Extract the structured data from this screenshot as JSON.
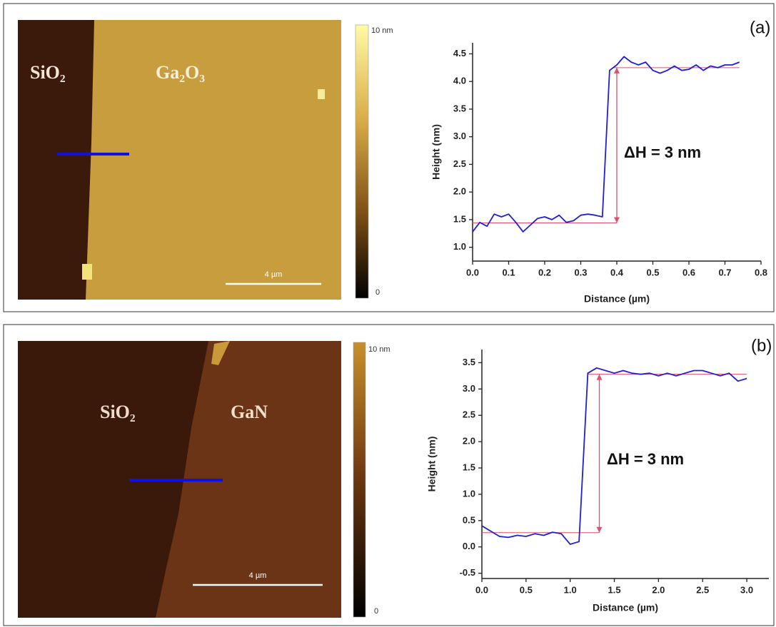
{
  "panels": [
    "(a)",
    "(b)"
  ],
  "images": [
    {
      "regions": [
        "SiO₂",
        "Ga₂O₃"
      ],
      "colorbar": {
        "max_label": "10 nm",
        "min_label": "0"
      },
      "scale_bar": "4 µm"
    },
    {
      "regions": [
        "SiO₂",
        "GaN"
      ],
      "colorbar": {
        "max_label": "10 nm",
        "min_label": "0"
      },
      "scale_bar": "4 µm"
    }
  ],
  "chart_data": [
    {
      "type": "line",
      "x_label": "Distance (µm)",
      "y_label": "Height (nm)",
      "x": [
        0,
        0.02,
        0.04,
        0.06,
        0.08,
        0.1,
        0.12,
        0.14,
        0.16,
        0.18,
        0.2,
        0.22,
        0.24,
        0.26,
        0.28,
        0.3,
        0.32,
        0.34,
        0.36,
        0.38,
        0.4,
        0.42,
        0.44,
        0.46,
        0.48,
        0.5,
        0.52,
        0.54,
        0.56,
        0.58,
        0.6,
        0.62,
        0.64,
        0.66,
        0.68,
        0.7,
        0.72,
        0.74
      ],
      "series": [
        {
          "color": "#1f1fd6",
          "values": [
            1.28,
            1.45,
            1.38,
            1.6,
            1.55,
            1.6,
            1.45,
            1.28,
            1.4,
            1.52,
            1.55,
            1.5,
            1.58,
            1.45,
            1.48,
            1.58,
            1.6,
            1.58,
            1.55,
            4.2,
            4.3,
            4.45,
            4.35,
            4.3,
            4.35,
            4.2,
            4.15,
            4.2,
            4.28,
            4.2,
            4.22,
            4.3,
            4.2,
            4.28,
            4.25,
            4.3,
            4.3,
            4.35
          ]
        }
      ],
      "xlim": [
        0,
        0.8
      ],
      "ylim": [
        0.75,
        4.7
      ],
      "xticks": [
        {
          "value": 0,
          "label": "0.0"
        },
        0.1,
        0.2,
        0.3,
        0.4,
        0.5,
        0.6,
        0.7,
        0.8
      ],
      "yticks": [
        {
          "value": 1,
          "label": "1.0"
        },
        1.5,
        {
          "value": 2,
          "label": "2.0"
        },
        2.5,
        {
          "value": 3,
          "label": "3.0"
        },
        3.5,
        {
          "value": 4,
          "label": "4.0"
        },
        4.5
      ],
      "reference_lines": [
        {
          "y": 1.44,
          "x": [
            0,
            0.4
          ]
        },
        {
          "y": 4.25,
          "x": [
            0.39,
            0.74
          ]
        }
      ],
      "reference_color": "#e0506a",
      "arrow": {
        "x": 0.4,
        "y": [
          1.44,
          4.25
        ]
      },
      "annotation": "ΔH = 3 nm"
    },
    {
      "type": "line",
      "x_label": "Distance (µm)",
      "y_label": "Height (nm)",
      "x": [
        0,
        0.1,
        0.2,
        0.3,
        0.4,
        0.5,
        0.6,
        0.7,
        0.8,
        0.9,
        1.0,
        1.1,
        1.2,
        1.3,
        1.4,
        1.5,
        1.6,
        1.7,
        1.8,
        1.9,
        2.0,
        2.1,
        2.2,
        2.3,
        2.4,
        2.5,
        2.6,
        2.7,
        2.8,
        2.9,
        3.0
      ],
      "series": [
        {
          "color": "#1f1fd6",
          "values": [
            0.4,
            0.3,
            0.2,
            0.18,
            0.22,
            0.2,
            0.25,
            0.22,
            0.28,
            0.25,
            0.05,
            0.1,
            3.3,
            3.4,
            3.35,
            3.3,
            3.35,
            3.3,
            3.28,
            3.3,
            3.25,
            3.3,
            3.25,
            3.3,
            3.35,
            3.35,
            3.3,
            3.25,
            3.3,
            3.15,
            3.2
          ]
        }
      ],
      "xlim": [
        0,
        3.25
      ],
      "ylim": [
        -0.6,
        3.75
      ],
      "xticks": [
        {
          "value": 0,
          "label": "0.0"
        },
        0.5,
        {
          "value": 1,
          "label": "1.0"
        },
        1.5,
        {
          "value": 2,
          "label": "2.0"
        },
        2.5,
        {
          "value": 3,
          "label": "3.0"
        }
      ],
      "yticks": [
        -0.5,
        {
          "value": 0,
          "label": "0.0"
        },
        0.5,
        {
          "value": 1,
          "label": "1.0"
        },
        1.5,
        {
          "value": 2,
          "label": "2.0"
        },
        2.5,
        {
          "value": 3,
          "label": "3.0"
        },
        3.5
      ],
      "reference_lines": [
        {
          "y": 0.27,
          "x": [
            0,
            1.33
          ]
        },
        {
          "y": 3.28,
          "x": [
            1.2,
            3.0
          ]
        }
      ],
      "reference_color": "#e0506a",
      "arrow": {
        "x": 1.33,
        "y": [
          0.27,
          3.28
        ]
      },
      "annotation": "ΔH = 3 nm"
    }
  ]
}
